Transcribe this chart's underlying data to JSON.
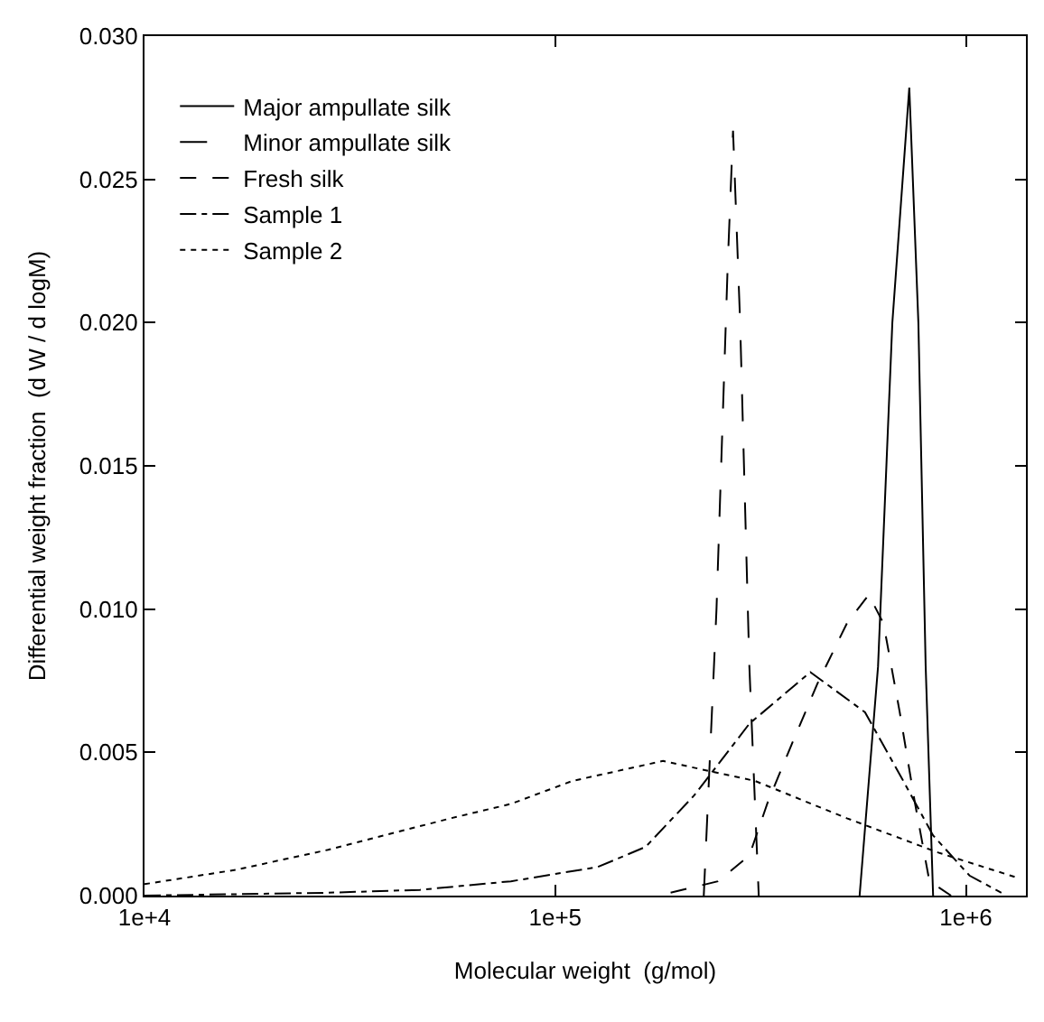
{
  "chart_data": {
    "type": "line",
    "xlabel": "Molecular weight  (g/mol)",
    "ylabel": "Differential weight fraction  (d W / d logM)",
    "log": "x",
    "legend": "top left",
    "marker": "none",
    "xlim": [
      10000,
      1400000
    ],
    "xticks": [
      {
        "value": 10000,
        "label": "1e+4"
      },
      {
        "value": 100000,
        "label": "1e+5"
      },
      {
        "value": 1000000,
        "label": "1e+6"
      }
    ],
    "ylim": [
      0,
      0.03
    ],
    "yticks": [
      {
        "value": 0,
        "label": "0.000"
      },
      {
        "value": 0.005,
        "label": "0.005"
      },
      {
        "value": 0.01,
        "label": "0.010"
      },
      {
        "value": 0.015,
        "label": "0.015"
      },
      {
        "value": 0.02,
        "label": "0.020"
      },
      {
        "value": 0.025,
        "label": "0.025"
      },
      {
        "value": 0.03,
        "label": "0.030"
      }
    ],
    "series": [
      {
        "name": "Major ampullate silk",
        "color": "#000000",
        "line_style": "solid",
        "x": [
          551000,
          611000,
          662000,
          728000,
          766000,
          798000,
          832000
        ],
        "values": [
          0,
          0.008,
          0.02,
          0.0282,
          0.02,
          0.008,
          0
        ]
      },
      {
        "name": "Minor ampullate silk",
        "color": "#000000",
        "line_style": "longdash",
        "x": [
          230000,
          247000,
          263000,
          271000,
          282000,
          297000,
          313000
        ],
        "values": [
          0,
          0.01,
          0.022,
          0.0267,
          0.02,
          0.008,
          0
        ]
      },
      {
        "name": "Fresh silk",
        "color": "#000000",
        "line_style": "dashed",
        "x": [
          191000,
          249000,
          297000,
          330000,
          377000,
          435000,
          513000,
          580000,
          630000,
          690000,
          750000,
          815000,
          920000
        ],
        "values": [
          0.0001,
          0.0005,
          0.0014,
          0.0033,
          0.0053,
          0.0074,
          0.0095,
          0.0105,
          0.0095,
          0.0064,
          0.0033,
          0.0005,
          0
        ]
      },
      {
        "name": "Sample 1",
        "color": "#000000",
        "line_style": "dashdot",
        "x": [
          10000,
          28000,
          46800,
          78000,
          127000,
          166000,
          218000,
          297000,
          418000,
          568000,
          698000,
          832000,
          1020000,
          1220000
        ],
        "values": [
          0,
          0.0001,
          0.0002,
          0.0005,
          0.001,
          0.0017,
          0.0035,
          0.006,
          0.0078,
          0.0064,
          0.0041,
          0.0021,
          0.0007,
          0.0001
        ]
      },
      {
        "name": "Sample 2",
        "color": "#000000",
        "line_style": "dotted",
        "x": [
          10000,
          16700,
          28000,
          55700,
          78000,
          110000,
          183000,
          307000,
          513000,
          857000,
          1350000
        ],
        "values": [
          0.0004,
          0.0009,
          0.0016,
          0.0027,
          0.0032,
          0.004,
          0.0047,
          0.004,
          0.0027,
          0.0015,
          0.0006
        ]
      }
    ]
  }
}
